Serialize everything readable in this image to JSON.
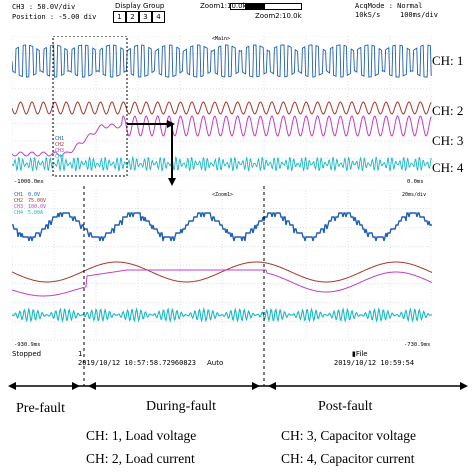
{
  "header": {
    "ch_setting": "CH3  :  50.0V/div",
    "position": "Position :  -5.00 div",
    "display_group_label": "Display Group",
    "groups": [
      "1",
      "2",
      "3",
      "4"
    ],
    "zoom1_label": "Zoom1:10.0k",
    "zoom2_label": "Zoom2:10.0k",
    "acq_mode": "AcqMode : Normal",
    "sample_rate": "10kS/s",
    "timebase": "100ms/div"
  },
  "top_screen": {
    "main_marker": "<Main>",
    "left_time": "-1000.0ms",
    "right_time": "0.0ms",
    "channel_tags": [
      "CH1",
      "CH2",
      "CH3",
      "CH4"
    ]
  },
  "bottom_screen": {
    "zoom_marker": "<Zoom1>",
    "right_scale": "20ms/div",
    "channel_tags": [
      "CH1",
      "CH2",
      "CH3",
      "CH4"
    ],
    "values": [
      "0.0V",
      "75.00V",
      "100.0V",
      "5.00A"
    ],
    "left_time": "-930.9ms",
    "right_time": "-730.9ms"
  },
  "status": {
    "state": "Stopped",
    "page": "1",
    "start_timestamp": "2019/10/12  10:57:58.72960823",
    "trigger_mode": "Auto",
    "file_label": "File",
    "end_timestamp": "2019/10/12  10:59:54"
  },
  "channel_labels": [
    "CH: 1",
    "CH: 2",
    "CH: 3",
    "CH: 4"
  ],
  "phases": {
    "pre": "Pre-fault",
    "during": "During-fault",
    "post": "Post-fault"
  },
  "legend": {
    "ch1": "CH: 1, Load voltage",
    "ch2": "CH: 2, Load current",
    "ch3": "CH: 3, Capacitor voltage",
    "ch4": "CH: 4, Capacitor current"
  },
  "colors": {
    "ch1": "#1f5fb4",
    "ch2": "#a23a2c",
    "ch3": "#c03fc4",
    "ch4": "#1ab8c4",
    "grid": "#b8c4d8"
  }
}
